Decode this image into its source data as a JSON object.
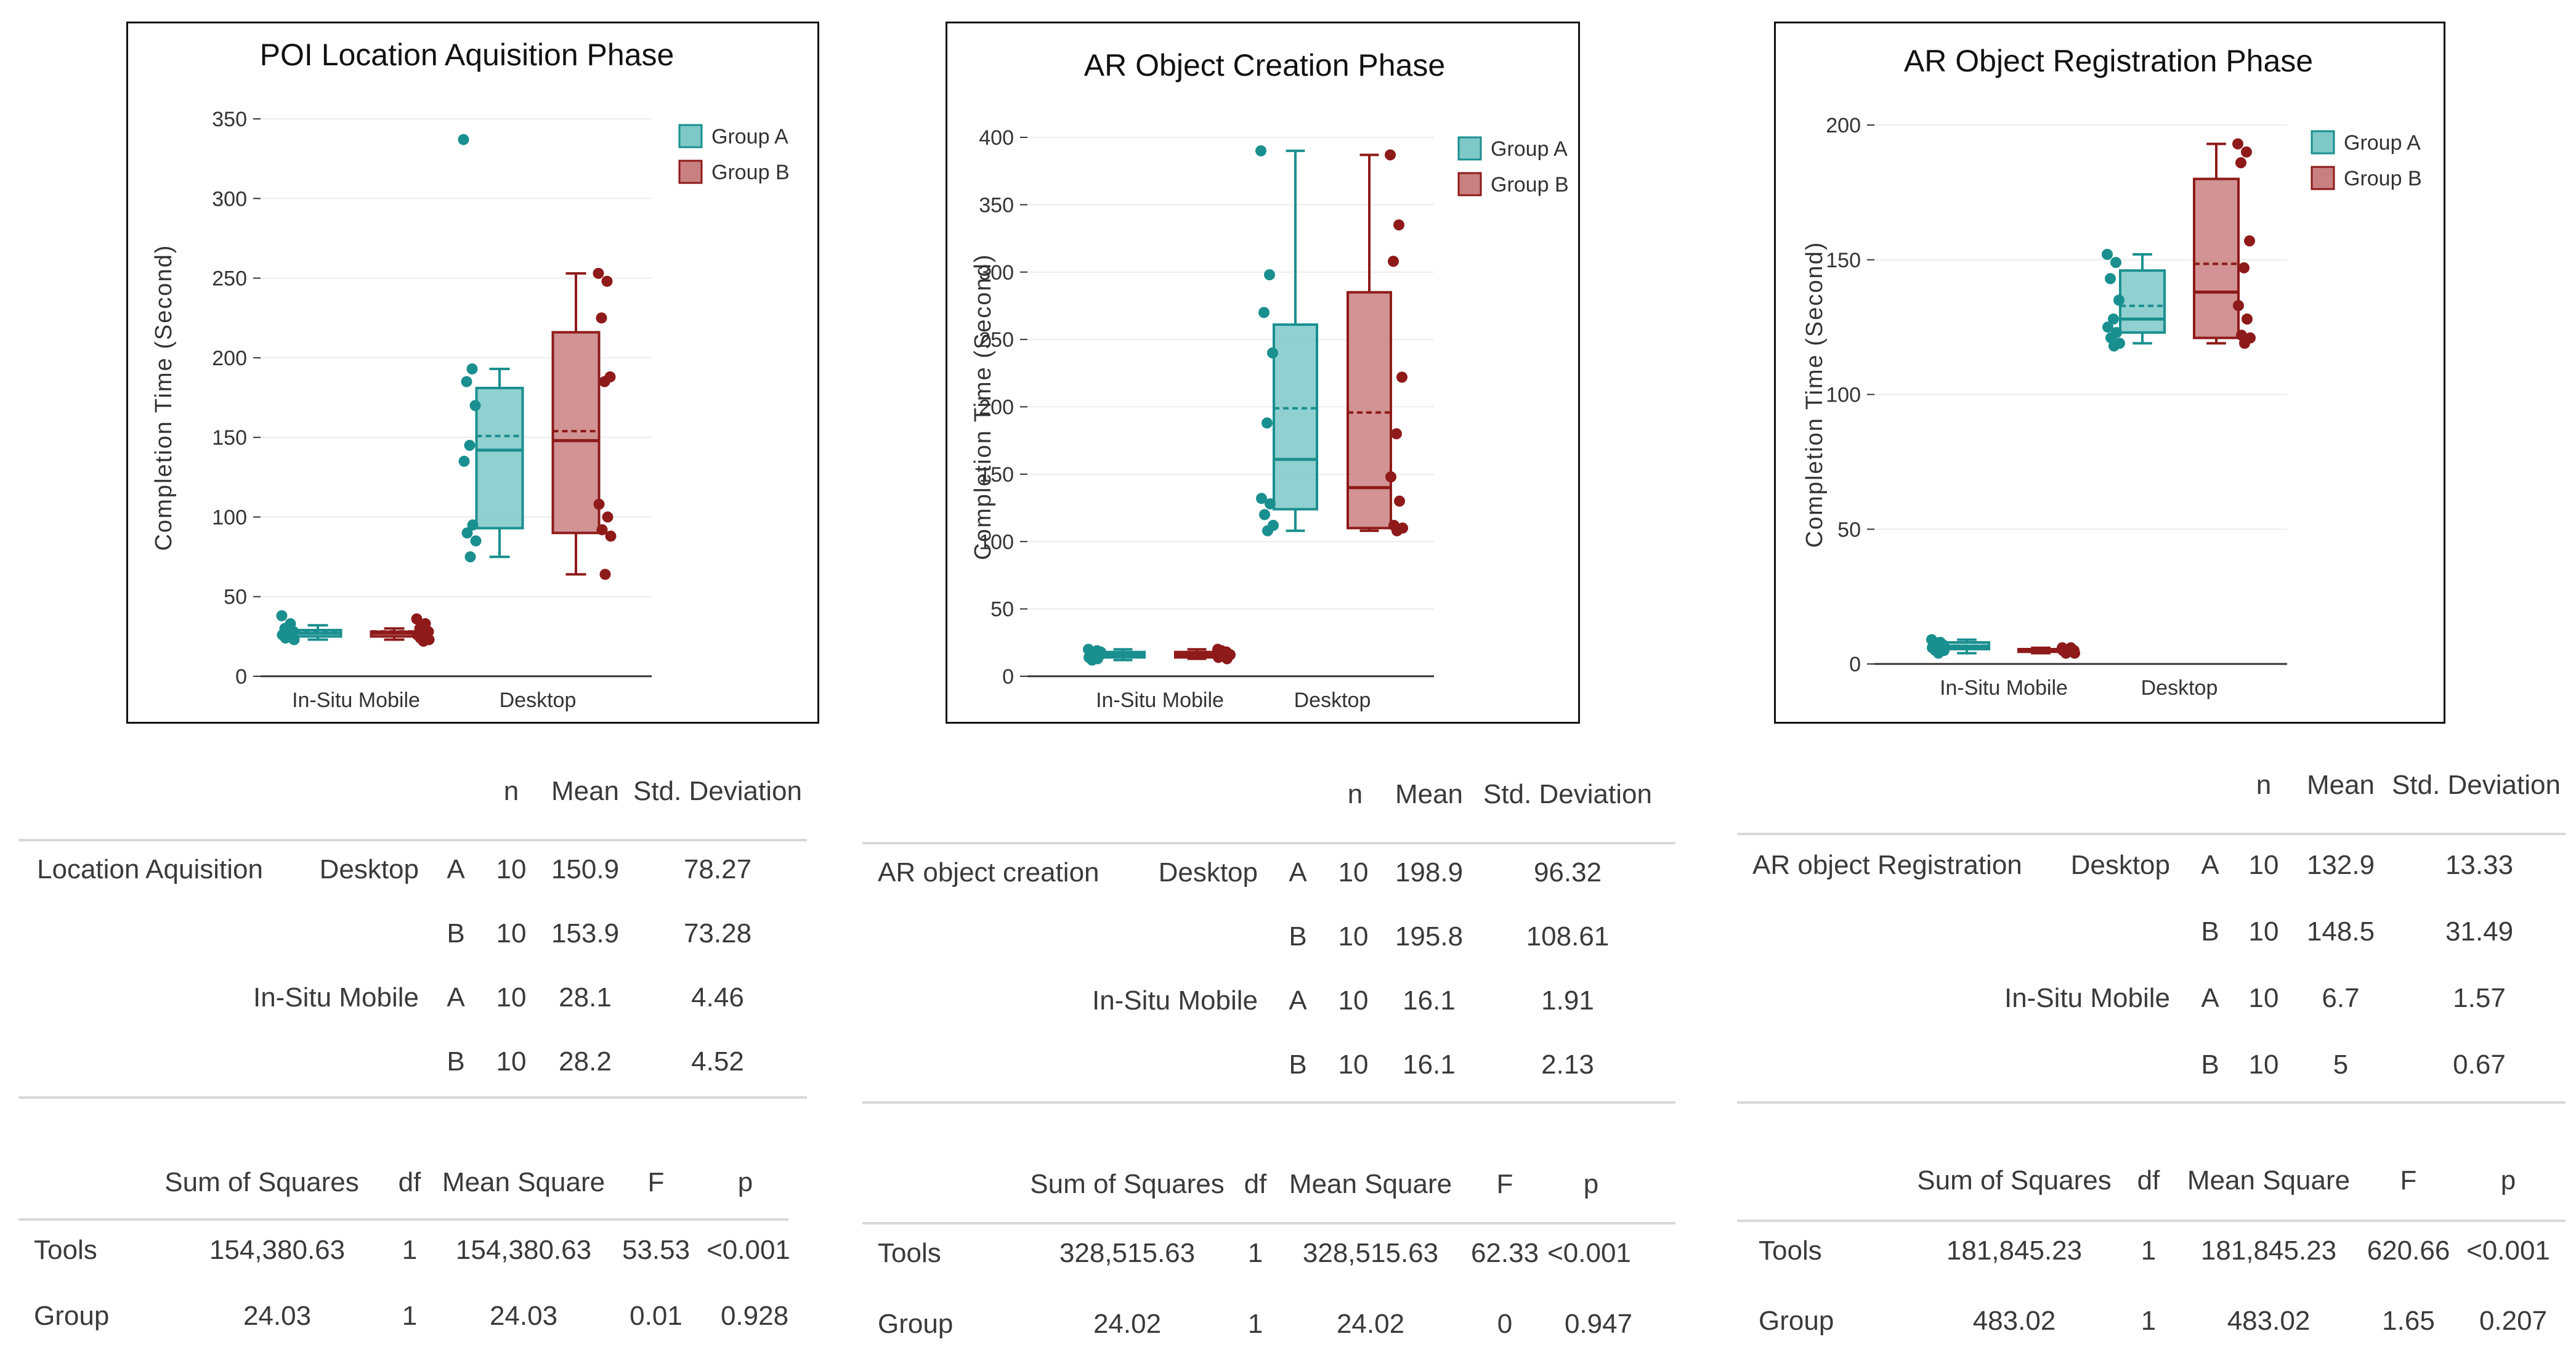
{
  "colors": {
    "group_a": "#1a8f8f",
    "group_a_fill": "#7ec8c8",
    "group_b": "#8e1a1a",
    "group_b_fill": "#c98080",
    "grid": "#ececec",
    "axis": "#333333"
  },
  "panels": [
    {
      "chart_data": {
        "type": "box",
        "title": "POI Location Aquisition Phase",
        "ylabel": "Completion Time (Second)",
        "xlabel": "",
        "categories": [
          "In-Situ Mobile",
          "Desktop"
        ],
        "ylim": [
          0,
          350
        ],
        "yticks": [
          0,
          50,
          100,
          150,
          200,
          250,
          300,
          350
        ],
        "legend_position": "top-right",
        "series": [
          {
            "name": "Group A",
            "boxes": [
              {
                "min": 23,
                "q1": 25,
                "median": 27,
                "q3": 29,
                "max": 32,
                "mean": 28.1,
                "points": [
                  38,
                  33,
                  30,
                  28,
                  27,
                  26,
                  25,
                  24,
                  23,
                  28
                ]
              },
              {
                "min": 75,
                "q1": 93,
                "median": 142,
                "q3": 181,
                "max": 193,
                "mean": 150.9,
                "points": [
                  337,
                  193,
                  185,
                  170,
                  145,
                  135,
                  95,
                  90,
                  85,
                  75
                ]
              }
            ]
          },
          {
            "name": "Group B",
            "boxes": [
              {
                "min": 23,
                "q1": 25,
                "median": 27,
                "q3": 28,
                "max": 30,
                "mean": 28.2,
                "points": [
                  36,
                  33,
                  30,
                  28,
                  27,
                  26,
                  25,
                  24,
                  23,
                  22
                ]
              },
              {
                "min": 64,
                "q1": 90,
                "median": 148,
                "q3": 216,
                "max": 253,
                "mean": 153.9,
                "points": [
                  253,
                  248,
                  225,
                  188,
                  185,
                  108,
                  100,
                  92,
                  88,
                  64
                ]
              }
            ]
          }
        ]
      },
      "desc": {
        "headers": {
          "n": "n",
          "mean": "Mean",
          "sd": "Std. Deviation"
        },
        "measure": "Location Aquisition",
        "rows": [
          {
            "tool": "Desktop",
            "group": "A",
            "n": "10",
            "mean": "150.9",
            "sd": "78.27"
          },
          {
            "tool": "",
            "group": "B",
            "n": "10",
            "mean": "153.9",
            "sd": "73.28"
          },
          {
            "tool": "In-Situ Mobile",
            "group": "A",
            "n": "10",
            "mean": "28.1",
            "sd": "4.46"
          },
          {
            "tool": "",
            "group": "B",
            "n": "10",
            "mean": "28.2",
            "sd": "4.52"
          }
        ]
      },
      "anova": {
        "headers": {
          "ss": "Sum of Squares",
          "df": "df",
          "ms": "Mean Square",
          "f": "F",
          "p": "p"
        },
        "rows": [
          {
            "label": "Tools",
            "ss": "154,380.63",
            "df": "1",
            "ms": "154,380.63",
            "f": "53.53",
            "p": "<0.001"
          },
          {
            "label": "Group",
            "ss": "24.03",
            "df": "1",
            "ms": "24.03",
            "f": "0.01",
            "p": "0.928"
          }
        ]
      }
    },
    {
      "chart_data": {
        "type": "box",
        "title": "AR Object Creation Phase",
        "ylabel": "Completion Time (Second)",
        "xlabel": "",
        "categories": [
          "In-Situ Mobile",
          "Desktop"
        ],
        "ylim": [
          0,
          400
        ],
        "yticks": [
          0,
          50,
          100,
          150,
          200,
          250,
          300,
          350,
          400
        ],
        "legend_position": "top-right",
        "series": [
          {
            "name": "Group A",
            "boxes": [
              {
                "min": 12,
                "q1": 14,
                "median": 16,
                "q3": 18,
                "max": 20,
                "mean": 16.1,
                "points": [
                  20,
                  19,
                  17,
                  16,
                  15,
                  14,
                  13,
                  12,
                  18,
                  16
                ]
              },
              {
                "min": 108,
                "q1": 124,
                "median": 161,
                "q3": 261,
                "max": 390,
                "mean": 198.9,
                "points": [
                  390,
                  298,
                  270,
                  240,
                  188,
                  132,
                  128,
                  120,
                  112,
                  108
                ]
              }
            ]
          },
          {
            "name": "Group B",
            "boxes": [
              {
                "min": 13,
                "q1": 14,
                "median": 16,
                "q3": 18,
                "max": 20,
                "mean": 16.1,
                "points": [
                  20,
                  18,
                  17,
                  16,
                  15,
                  14,
                  13,
                  19,
                  16,
                  15
                ]
              },
              {
                "min": 108,
                "q1": 110,
                "median": 140,
                "q3": 285,
                "max": 387,
                "mean": 195.8,
                "points": [
                  387,
                  335,
                  308,
                  222,
                  180,
                  148,
                  130,
                  112,
                  110,
                  108
                ]
              }
            ]
          }
        ]
      },
      "desc": {
        "headers": {
          "n": "n",
          "mean": "Mean",
          "sd": "Std. Deviation"
        },
        "measure": "AR object creation",
        "rows": [
          {
            "tool": "Desktop",
            "group": "A",
            "n": "10",
            "mean": "198.9",
            "sd": "96.32"
          },
          {
            "tool": "",
            "group": "B",
            "n": "10",
            "mean": "195.8",
            "sd": "108.61"
          },
          {
            "tool": "In-Situ Mobile",
            "group": "A",
            "n": "10",
            "mean": "16.1",
            "sd": "1.91"
          },
          {
            "tool": "",
            "group": "B",
            "n": "10",
            "mean": "16.1",
            "sd": "2.13"
          }
        ]
      },
      "anova": {
        "headers": {
          "ss": "Sum of Squares",
          "df": "df",
          "ms": "Mean Square",
          "f": "F",
          "p": "p"
        },
        "rows": [
          {
            "label": "Tools",
            "ss": "328,515.63",
            "df": "1",
            "ms": "328,515.63",
            "f": "62.33",
            "p": "<0.001"
          },
          {
            "label": "Group",
            "ss": "24.02",
            "df": "1",
            "ms": "24.02",
            "f": "0",
            "p": "0.947"
          }
        ]
      }
    },
    {
      "chart_data": {
        "type": "box",
        "title": "AR Object Registration Phase",
        "ylabel": "Completion Time (Second)",
        "xlabel": "",
        "categories": [
          "In-Situ Mobile",
          "Desktop"
        ],
        "ylim": [
          0,
          200
        ],
        "yticks": [
          0,
          50,
          100,
          150,
          200
        ],
        "legend_position": "top-right",
        "series": [
          {
            "name": "Group A",
            "boxes": [
              {
                "min": 4,
                "q1": 5.5,
                "median": 6.5,
                "q3": 8,
                "max": 9,
                "mean": 6.7,
                "points": [
                  9,
                  8,
                  8,
                  7,
                  7,
                  6,
                  6,
                  5,
                  5,
                  4
                ]
              },
              {
                "min": 119,
                "q1": 123,
                "median": 128,
                "q3": 146,
                "max": 152,
                "mean": 132.9,
                "points": [
                  152,
                  149,
                  143,
                  135,
                  128,
                  125,
                  123,
                  121,
                  119,
                  118
                ]
              }
            ]
          },
          {
            "name": "Group B",
            "boxes": [
              {
                "min": 4,
                "q1": 4.5,
                "median": 5,
                "q3": 5.5,
                "max": 6,
                "mean": 5,
                "points": [
                  6,
                  6,
                  5,
                  5,
                  5,
                  5,
                  5,
                  4,
                  4,
                  5
                ]
              },
              {
                "min": 119,
                "q1": 121,
                "median": 138,
                "q3": 180,
                "max": 193,
                "mean": 148.5,
                "points": [
                  193,
                  190,
                  186,
                  157,
                  147,
                  133,
                  128,
                  122,
                  121,
                  119
                ]
              }
            ]
          }
        ]
      },
      "desc": {
        "headers": {
          "n": "n",
          "mean": "Mean",
          "sd": "Std. Deviation"
        },
        "measure": "AR object Registration",
        "rows": [
          {
            "tool": "Desktop",
            "group": "A",
            "n": "10",
            "mean": "132.9",
            "sd": "13.33"
          },
          {
            "tool": "",
            "group": "B",
            "n": "10",
            "mean": "148.5",
            "sd": "31.49"
          },
          {
            "tool": "In-Situ Mobile",
            "group": "A",
            "n": "10",
            "mean": "6.7",
            "sd": "1.57"
          },
          {
            "tool": "",
            "group": "B",
            "n": "10",
            "mean": "5",
            "sd": "0.67"
          }
        ]
      },
      "anova": {
        "headers": {
          "ss": "Sum of Squares",
          "df": "df",
          "ms": "Mean Square",
          "f": "F",
          "p": "p"
        },
        "rows": [
          {
            "label": "Tools",
            "ss": "181,845.23",
            "df": "1",
            "ms": "181,845.23",
            "f": "620.66",
            "p": "<0.001"
          },
          {
            "label": "Group",
            "ss": "483.02",
            "df": "1",
            "ms": "483.02",
            "f": "1.65",
            "p": "0.207"
          }
        ]
      }
    }
  ]
}
